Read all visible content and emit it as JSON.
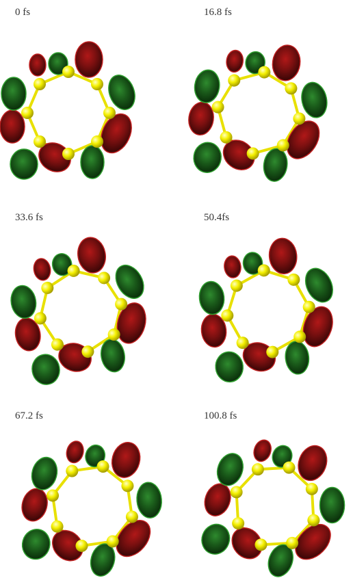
{
  "panels": [
    {
      "label": "0 fs"
    },
    {
      "label": "16.8 fs"
    },
    {
      "label": "33.6 fs"
    },
    {
      "label": "50.4fs"
    },
    {
      "label": "67.2 fs"
    },
    {
      "label": "100.8 fs"
    }
  ]
}
